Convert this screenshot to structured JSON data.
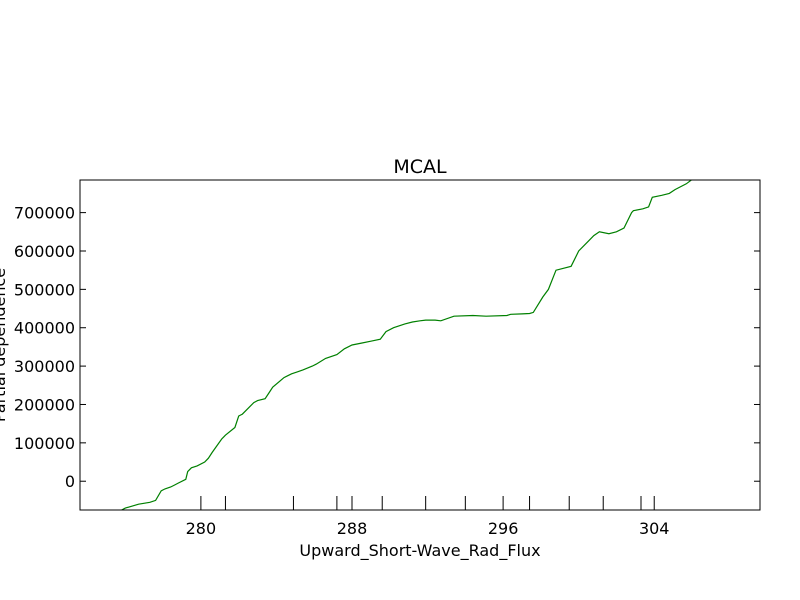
{
  "chart_data": {
    "type": "line",
    "title": "MCAL",
    "xlabel": "Upward_Short-Wave_Rad_Flux",
    "ylabel": "Partial dependence",
    "xlim": [
      273.6,
      309.6
    ],
    "ylim": [
      -75000,
      785000
    ],
    "xticks": [
      280,
      288,
      296,
      304
    ],
    "xtick_labels": [
      "280",
      "288",
      "296",
      "304"
    ],
    "xticks_minor": [
      281.3,
      284.9,
      287.2,
      289.6,
      291.9,
      294.0,
      297.4,
      299.5,
      301.3,
      303.3
    ],
    "yticks": [
      0,
      100000,
      200000,
      300000,
      400000,
      500000,
      600000,
      700000
    ],
    "ytick_labels": [
      "0",
      "100000",
      "200000",
      "300000",
      "400000",
      "500000",
      "600000",
      "700000"
    ],
    "grid": false,
    "colors": {
      "line": "#008000",
      "axes": "#000000",
      "background": "#ffffff"
    },
    "series": [
      {
        "x": [
          275.8,
          276.0,
          276.7,
          277.3,
          277.6,
          277.9,
          278.1,
          278.4,
          278.6,
          278.8,
          279.2,
          279.3,
          279.5,
          279.8,
          280.2,
          280.4,
          280.6,
          281.1,
          281.2,
          281.3,
          281.8,
          282.0,
          282.2,
          282.8,
          283.0,
          283.4,
          283.6,
          283.8,
          284.4,
          284.6,
          284.8,
          285.1,
          285.4,
          285.9,
          286.1,
          286.6,
          287.2,
          287.6,
          288.0,
          288.5,
          289.0,
          289.5,
          289.8,
          290.2,
          290.8,
          291.2,
          291.6,
          291.9,
          292.4,
          292.7,
          293.4,
          294.4,
          295.1,
          296.2,
          296.4,
          297.0,
          297.4,
          297.6,
          298.1,
          298.4,
          298.8,
          299.6,
          299.8,
          300.0,
          300.5,
          300.8,
          301.1,
          301.6,
          302.0,
          302.4,
          302.8,
          302.9,
          303.4,
          303.7,
          303.9,
          304.4,
          304.8,
          305.1,
          305.7,
          306.1,
          306.2,
          306.4,
          306.6,
          307.2
        ],
        "y": [
          -75000,
          -70000,
          -60000,
          -55000,
          -50000,
          -25000,
          -20000,
          -15000,
          -10000,
          -5000,
          5000,
          25000,
          35000,
          40000,
          50000,
          60000,
          75000,
          110000,
          115000,
          120000,
          140000,
          170000,
          175000,
          205000,
          210000,
          215000,
          230000,
          245000,
          270000,
          275000,
          280000,
          285000,
          290000,
          300000,
          305000,
          320000,
          330000,
          345000,
          355000,
          360000,
          365000,
          370000,
          390000,
          400000,
          410000,
          415000,
          418000,
          420000,
          420000,
          418000,
          430000,
          432000,
          430000,
          432000,
          435000,
          436000,
          437000,
          440000,
          480000,
          500000,
          550000,
          560000,
          580000,
          600000,
          625000,
          640000,
          650000,
          645000,
          650000,
          660000,
          700000,
          705000,
          710000,
          715000,
          740000,
          745000,
          750000,
          760000,
          775000,
          790000,
          805000,
          810000,
          815000,
          830000
        ]
      }
    ]
  }
}
